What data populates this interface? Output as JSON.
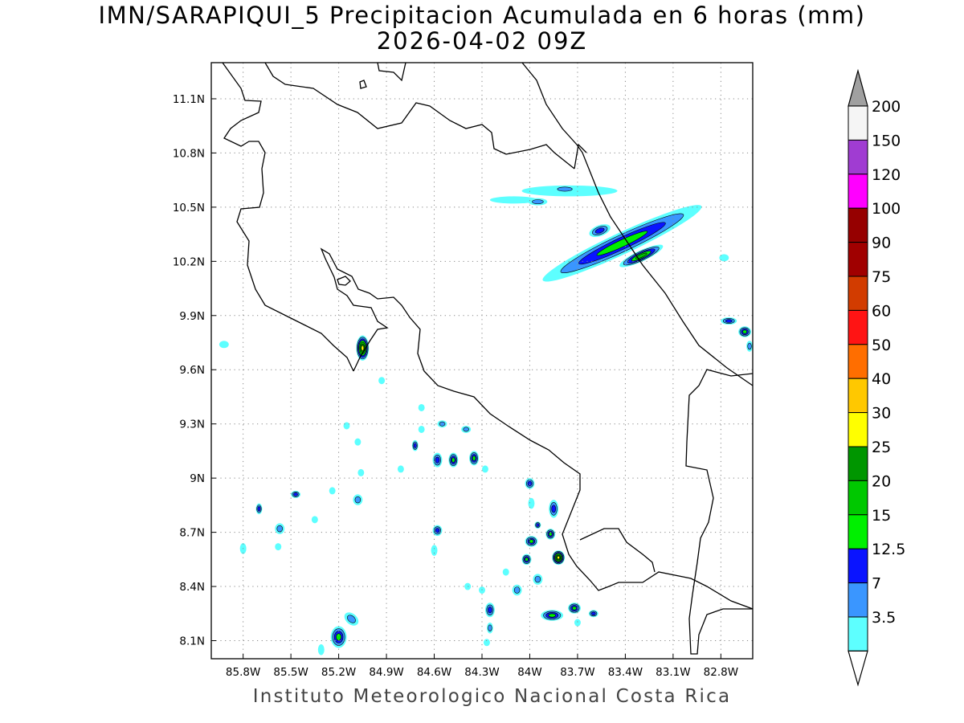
{
  "title": "IMN/SARAPIQUI_5 Precipitacion Acumulada en 6 horas (mm)",
  "valid_time": "2026-04-02 09Z",
  "footer": "Instituto Meteorologico Nacional Costa Rica",
  "map": {
    "lon_range": [
      -86.0,
      -82.6
    ],
    "lat_range": [
      8.0,
      11.3
    ],
    "lon_ticks": [
      {
        "value": -85.8,
        "label": "85.8W"
      },
      {
        "value": -85.5,
        "label": "85.5W"
      },
      {
        "value": -85.2,
        "label": "85.2W"
      },
      {
        "value": -84.9,
        "label": "84.9W"
      },
      {
        "value": -84.6,
        "label": "84.6W"
      },
      {
        "value": -84.3,
        "label": "84.3W"
      },
      {
        "value": -84.0,
        "label": "84W"
      },
      {
        "value": -83.7,
        "label": "83.7W"
      },
      {
        "value": -83.4,
        "label": "83.4W"
      },
      {
        "value": -83.1,
        "label": "83.1W"
      },
      {
        "value": -82.8,
        "label": "82.8W"
      }
    ],
    "lat_ticks": [
      {
        "value": 11.1,
        "label": "11.1N"
      },
      {
        "value": 10.8,
        "label": "10.8N"
      },
      {
        "value": 10.5,
        "label": "10.5N"
      },
      {
        "value": 10.2,
        "label": "10.2N"
      },
      {
        "value": 9.9,
        "label": "9.9N"
      },
      {
        "value": 9.6,
        "label": "9.6N"
      },
      {
        "value": 9.3,
        "label": "9.3N"
      },
      {
        "value": 9.0,
        "label": "9N"
      },
      {
        "value": 8.7,
        "label": "8.7N"
      },
      {
        "value": 8.4,
        "label": "8.4N"
      },
      {
        "value": 8.1,
        "label": "8.1N"
      }
    ],
    "grid": "dotted"
  },
  "colorbar": {
    "unit": "mm",
    "levels": [
      {
        "label": "3.5",
        "color": "#5dffff"
      },
      {
        "label": "7",
        "color": "#3a96ff"
      },
      {
        "label": "12.5",
        "color": "#0a14ff"
      },
      {
        "label": "15",
        "color": "#00f000"
      },
      {
        "label": "20",
        "color": "#00c800"
      },
      {
        "label": "25",
        "color": "#009600"
      },
      {
        "label": "30",
        "color": "#ffff00"
      },
      {
        "label": "40",
        "color": "#ffc800"
      },
      {
        "label": "50",
        "color": "#ff6e00"
      },
      {
        "label": "60",
        "color": "#ff1414"
      },
      {
        "label": "75",
        "color": "#d23c00"
      },
      {
        "label": "90",
        "color": "#a00000"
      },
      {
        "label": "100",
        "color": "#960000"
      },
      {
        "label": "120",
        "color": "#ff00ff"
      },
      {
        "label": "150",
        "color": "#a03cd2"
      },
      {
        "label": "200",
        "color": "#f5f5f5"
      }
    ],
    "over_color": "#a0a0a0",
    "under_color": "#ffffff"
  },
  "precip_cells": [
    {
      "lon": -83.42,
      "lat": 10.3,
      "rx_deg": 0.55,
      "ry_deg": 0.06,
      "rot": 25,
      "level": 3
    },
    {
      "lon": -83.75,
      "lat": 10.59,
      "rx_deg": 0.3,
      "ry_deg": 0.03,
      "rot": 0,
      "level": 0
    },
    {
      "lon": -84.1,
      "lat": 10.54,
      "rx_deg": 0.15,
      "ry_deg": 0.02,
      "rot": 0,
      "level": 0
    },
    {
      "lon": -85.05,
      "lat": 9.72,
      "rx_deg": 0.04,
      "ry_deg": 0.07,
      "rot": 0,
      "level": 6
    },
    {
      "lon": -82.65,
      "lat": 9.81,
      "rx_deg": 0.04,
      "ry_deg": 0.03,
      "rot": 0,
      "level": 3
    },
    {
      "lon": -82.75,
      "lat": 9.87,
      "rx_deg": 0.05,
      "ry_deg": 0.02,
      "rot": 0,
      "level": 2
    },
    {
      "lon": -84.35,
      "lat": 9.11,
      "rx_deg": 0.03,
      "ry_deg": 0.04,
      "rot": 0,
      "level": 3
    },
    {
      "lon": -84.48,
      "lat": 9.1,
      "rx_deg": 0.03,
      "ry_deg": 0.04,
      "rot": 0,
      "level": 3
    },
    {
      "lon": -84.58,
      "lat": 9.1,
      "rx_deg": 0.03,
      "ry_deg": 0.04,
      "rot": 0,
      "level": 2
    },
    {
      "lon": -83.82,
      "lat": 8.56,
      "rx_deg": 0.04,
      "ry_deg": 0.04,
      "rot": 0,
      "level": 6
    },
    {
      "lon": -83.86,
      "lat": 8.24,
      "rx_deg": 0.07,
      "ry_deg": 0.03,
      "rot": 0,
      "level": 3
    },
    {
      "lon": -83.72,
      "lat": 8.28,
      "rx_deg": 0.04,
      "ry_deg": 0.03,
      "rot": 0,
      "level": 3
    },
    {
      "lon": -83.99,
      "lat": 8.65,
      "rx_deg": 0.04,
      "ry_deg": 0.03,
      "rot": 0,
      "level": 3
    },
    {
      "lon": -83.87,
      "lat": 8.69,
      "rx_deg": 0.03,
      "ry_deg": 0.03,
      "rot": 0,
      "level": 3
    },
    {
      "lon": -84.02,
      "lat": 8.55,
      "rx_deg": 0.03,
      "ry_deg": 0.03,
      "rot": 0,
      "level": 3
    },
    {
      "lon": -83.85,
      "lat": 8.83,
      "rx_deg": 0.03,
      "ry_deg": 0.05,
      "rot": 0,
      "level": 2
    },
    {
      "lon": -84.0,
      "lat": 8.97,
      "rx_deg": 0.03,
      "ry_deg": 0.03,
      "rot": 0,
      "level": 2
    },
    {
      "lon": -83.95,
      "lat": 8.74,
      "rx_deg": 0.02,
      "ry_deg": 0.02,
      "rot": 0,
      "level": 2
    },
    {
      "lon": -84.58,
      "lat": 8.71,
      "rx_deg": 0.03,
      "ry_deg": 0.03,
      "rot": 0,
      "level": 2
    },
    {
      "lon": -85.2,
      "lat": 8.12,
      "rx_deg": 0.05,
      "ry_deg": 0.06,
      "rot": 0,
      "level": 3
    },
    {
      "lon": -85.12,
      "lat": 8.22,
      "rx_deg": 0.05,
      "ry_deg": 0.03,
      "rot": -40,
      "level": 1
    },
    {
      "lon": -85.47,
      "lat": 8.91,
      "rx_deg": 0.03,
      "ry_deg": 0.02,
      "rot": 0,
      "level": 2
    },
    {
      "lon": -85.7,
      "lat": 8.83,
      "rx_deg": 0.02,
      "ry_deg": 0.03,
      "rot": 0,
      "level": 2
    },
    {
      "lon": -85.57,
      "lat": 8.72,
      "rx_deg": 0.03,
      "ry_deg": 0.03,
      "rot": 0,
      "level": 1
    },
    {
      "lon": -85.08,
      "lat": 8.88,
      "rx_deg": 0.03,
      "ry_deg": 0.03,
      "rot": 0,
      "level": 1
    },
    {
      "lon": -84.25,
      "lat": 8.27,
      "rx_deg": 0.03,
      "ry_deg": 0.04,
      "rot": 0,
      "level": 2
    },
    {
      "lon": -83.6,
      "lat": 8.25,
      "rx_deg": 0.03,
      "ry_deg": 0.02,
      "rot": 0,
      "level": 2
    },
    {
      "lon": -84.72,
      "lat": 9.18,
      "rx_deg": 0.02,
      "ry_deg": 0.03,
      "rot": 0,
      "level": 2
    },
    {
      "lon": -84.55,
      "lat": 9.3,
      "rx_deg": 0.03,
      "ry_deg": 0.02,
      "rot": 0,
      "level": 1
    },
    {
      "lon": -83.95,
      "lat": 8.44,
      "rx_deg": 0.03,
      "ry_deg": 0.03,
      "rot": 0,
      "level": 1
    },
    {
      "lon": -84.08,
      "lat": 8.38,
      "rx_deg": 0.03,
      "ry_deg": 0.03,
      "rot": 0,
      "level": 1
    },
    {
      "lon": -84.4,
      "lat": 9.27,
      "rx_deg": 0.03,
      "ry_deg": 0.02,
      "rot": 0,
      "level": 1
    },
    {
      "lon": -84.25,
      "lat": 8.17,
      "rx_deg": 0.02,
      "ry_deg": 0.03,
      "rot": 0,
      "level": 1
    },
    {
      "lon": -85.58,
      "lat": 8.62,
      "rx_deg": 0.02,
      "ry_deg": 0.02,
      "rot": 0,
      "level": 0
    },
    {
      "lon": -85.8,
      "lat": 8.61,
      "rx_deg": 0.02,
      "ry_deg": 0.03,
      "rot": 0,
      "level": 0
    },
    {
      "lon": -85.92,
      "lat": 9.74,
      "rx_deg": 0.03,
      "ry_deg": 0.02,
      "rot": 0,
      "level": 0
    },
    {
      "lon": -85.06,
      "lat": 9.03,
      "rx_deg": 0.02,
      "ry_deg": 0.02,
      "rot": 0,
      "level": 0
    },
    {
      "lon": -85.08,
      "lat": 9.2,
      "rx_deg": 0.02,
      "ry_deg": 0.02,
      "rot": 0,
      "level": 0
    },
    {
      "lon": -85.15,
      "lat": 9.29,
      "rx_deg": 0.02,
      "ry_deg": 0.02,
      "rot": 0,
      "level": 0
    },
    {
      "lon": -84.93,
      "lat": 9.54,
      "rx_deg": 0.02,
      "ry_deg": 0.02,
      "rot": 0,
      "level": 0
    },
    {
      "lon": -84.68,
      "lat": 9.39,
      "rx_deg": 0.02,
      "ry_deg": 0.02,
      "rot": 0,
      "level": 0
    },
    {
      "lon": -84.68,
      "lat": 9.27,
      "rx_deg": 0.02,
      "ry_deg": 0.02,
      "rot": 0,
      "level": 0
    },
    {
      "lon": -84.81,
      "lat": 9.05,
      "rx_deg": 0.02,
      "ry_deg": 0.02,
      "rot": 0,
      "level": 0
    },
    {
      "lon": -84.28,
      "lat": 9.05,
      "rx_deg": 0.02,
      "ry_deg": 0.02,
      "rot": 0,
      "level": 0
    },
    {
      "lon": -84.39,
      "lat": 8.4,
      "rx_deg": 0.02,
      "ry_deg": 0.02,
      "rot": 0,
      "level": 0
    },
    {
      "lon": -84.6,
      "lat": 8.6,
      "rx_deg": 0.02,
      "ry_deg": 0.03,
      "rot": 0,
      "level": 0
    },
    {
      "lon": -83.99,
      "lat": 8.86,
      "rx_deg": 0.02,
      "ry_deg": 0.03,
      "rot": 0,
      "level": 0
    },
    {
      "lon": -84.15,
      "lat": 8.48,
      "rx_deg": 0.02,
      "ry_deg": 0.02,
      "rot": 0,
      "level": 0
    },
    {
      "lon": -84.3,
      "lat": 8.38,
      "rx_deg": 0.02,
      "ry_deg": 0.02,
      "rot": 0,
      "level": 0
    },
    {
      "lon": -84.27,
      "lat": 8.09,
      "rx_deg": 0.02,
      "ry_deg": 0.02,
      "rot": 0,
      "level": 0
    },
    {
      "lon": -85.31,
      "lat": 8.05,
      "rx_deg": 0.02,
      "ry_deg": 0.03,
      "rot": 0,
      "level": 0
    },
    {
      "lon": -85.35,
      "lat": 8.77,
      "rx_deg": 0.02,
      "ry_deg": 0.02,
      "rot": 0,
      "level": 0
    },
    {
      "lon": -85.24,
      "lat": 8.93,
      "rx_deg": 0.02,
      "ry_deg": 0.02,
      "rot": 0,
      "level": 0
    },
    {
      "lon": -83.7,
      "lat": 8.2,
      "rx_deg": 0.02,
      "ry_deg": 0.02,
      "rot": 0,
      "level": 0
    },
    {
      "lon": -82.78,
      "lat": 10.22,
      "rx_deg": 0.03,
      "ry_deg": 0.02,
      "rot": 0,
      "level": 0
    },
    {
      "lon": -82.62,
      "lat": 9.73,
      "rx_deg": 0.02,
      "ry_deg": 0.03,
      "rot": 0,
      "level": 1
    },
    {
      "lon": -83.56,
      "lat": 10.37,
      "rx_deg": 0.07,
      "ry_deg": 0.03,
      "rot": 20,
      "level": 2
    },
    {
      "lon": -83.3,
      "lat": 10.23,
      "rx_deg": 0.15,
      "ry_deg": 0.03,
      "rot": 25,
      "level": 4
    },
    {
      "lon": -83.78,
      "lat": 10.6,
      "rx_deg": 0.08,
      "ry_deg": 0.02,
      "rot": 0,
      "level": 1
    },
    {
      "lon": -83.95,
      "lat": 10.53,
      "rx_deg": 0.06,
      "ry_deg": 0.02,
      "rot": 0,
      "level": 1
    }
  ]
}
